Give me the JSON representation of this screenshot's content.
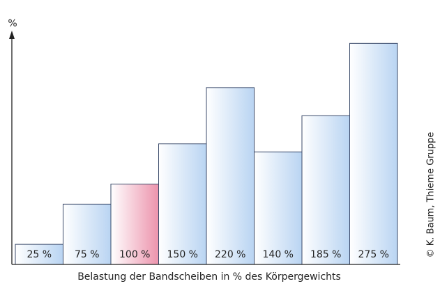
{
  "chart_data": {
    "type": "bar",
    "y_label": "%",
    "x_label": "Belastung der Bandscheiben in % des Körpergewichts",
    "credit": "© K. Baum, Thieme Gruppe",
    "categories": [
      null,
      null,
      null,
      null,
      null,
      null,
      null,
      null
    ],
    "values": [
      25,
      75,
      100,
      150,
      220,
      140,
      185,
      275
    ],
    "value_labels": [
      "25 %",
      "75 %",
      "100 %",
      "150 %",
      "220 %",
      "140 %",
      "185 %",
      "275 %"
    ],
    "colors": [
      "#b9d4f2",
      "#b9d4f2",
      "#ec93ac",
      "#b9d4f2",
      "#b9d4f2",
      "#b9d4f2",
      "#b9d4f2",
      "#b9d4f2"
    ],
    "ylim": [
      0,
      290
    ]
  }
}
